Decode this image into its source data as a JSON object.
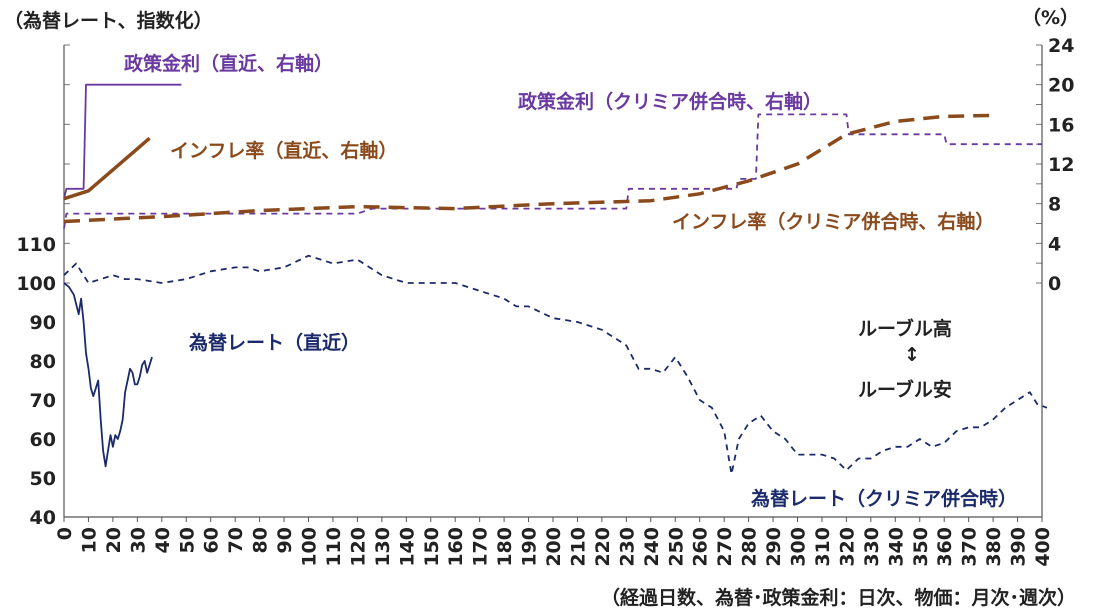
{
  "chart_data": {
    "type": "line",
    "title_left": "（為替レート、指数化）",
    "title_right": "（%）",
    "xlabel": "（経過日数、為替･政策金利：日次、物価：月次･週次）",
    "x_ticks": [
      "0",
      "10",
      "20",
      "30",
      "40",
      "50",
      "60",
      "70",
      "80",
      "90",
      "100",
      "110",
      "120",
      "130",
      "140",
      "150",
      "160",
      "170",
      "180",
      "190",
      "200",
      "210",
      "220",
      "230",
      "240",
      "250",
      "260",
      "270",
      "280",
      "290",
      "300",
      "310",
      "320",
      "330",
      "340",
      "350",
      "360",
      "370",
      "380",
      "390",
      "400"
    ],
    "left_axis": {
      "ticks": [
        "40",
        "50",
        "60",
        "70",
        "80",
        "90",
        "100",
        "110"
      ],
      "ylim": [
        40,
        110
      ]
    },
    "right_axis": {
      "ticks": [
        "0",
        "4",
        "8",
        "12",
        "16",
        "20",
        "24"
      ],
      "ylim": [
        0,
        24
      ]
    },
    "colors": {
      "fx": "#1b2a6b",
      "rate": "#6a3aa0",
      "inflation": "#8a4a1c",
      "text": "#222222"
    },
    "annotations": {
      "rate_recent": "政策金利（直近、右軸）",
      "rate_crimea": "政策金利（クリミア併合時、右軸）",
      "inflation_recent": "インフレ率（直近、右軸）",
      "inflation_crimea": "インフレ率（クリミア併合時、右軸）",
      "fx_recent": "為替レート（直近）",
      "fx_crimea": "為替レート（クリミア併合時）",
      "ruble_high": "ルーブル高",
      "ruble_arrow": "↕",
      "ruble_low": "ルーブル安"
    },
    "series": [
      {
        "name": "為替レート（直近）",
        "axis": "left",
        "style": "solid",
        "color_key": "fx",
        "points": [
          [
            0,
            100
          ],
          [
            2,
            99
          ],
          [
            4,
            97
          ],
          [
            6,
            92
          ],
          [
            7,
            96
          ],
          [
            8,
            90
          ],
          [
            9,
            82
          ],
          [
            10,
            78
          ],
          [
            11,
            73
          ],
          [
            12,
            71
          ],
          [
            13,
            73
          ],
          [
            14,
            75
          ],
          [
            15,
            65
          ],
          [
            16,
            57
          ],
          [
            17,
            53
          ],
          [
            18,
            57
          ],
          [
            19,
            61
          ],
          [
            20,
            58
          ],
          [
            21,
            61
          ],
          [
            22,
            60
          ],
          [
            23,
            62
          ],
          [
            24,
            65
          ],
          [
            25,
            72
          ],
          [
            26,
            75
          ],
          [
            27,
            78
          ],
          [
            28,
            77
          ],
          [
            29,
            74
          ],
          [
            30,
            74
          ],
          [
            31,
            76
          ],
          [
            32,
            79
          ],
          [
            33,
            80
          ],
          [
            34,
            77
          ],
          [
            35,
            79
          ],
          [
            36,
            81
          ]
        ]
      },
      {
        "name": "為替レート（クリミア併合時）",
        "axis": "left",
        "style": "dashed",
        "color_key": "fx",
        "points": [
          [
            0,
            102
          ],
          [
            5,
            105
          ],
          [
            10,
            100
          ],
          [
            15,
            101
          ],
          [
            20,
            102
          ],
          [
            25,
            101
          ],
          [
            30,
            101
          ],
          [
            40,
            100
          ],
          [
            50,
            101
          ],
          [
            60,
            103
          ],
          [
            70,
            104
          ],
          [
            75,
            104
          ],
          [
            80,
            103
          ],
          [
            90,
            104
          ],
          [
            100,
            107
          ],
          [
            110,
            105
          ],
          [
            120,
            106
          ],
          [
            125,
            104
          ],
          [
            130,
            102
          ],
          [
            140,
            100
          ],
          [
            150,
            100
          ],
          [
            160,
            100
          ],
          [
            170,
            98
          ],
          [
            180,
            96
          ],
          [
            185,
            94
          ],
          [
            190,
            94
          ],
          [
            200,
            91
          ],
          [
            210,
            90
          ],
          [
            220,
            88
          ],
          [
            230,
            84
          ],
          [
            235,
            78
          ],
          [
            240,
            78
          ],
          [
            245,
            77
          ],
          [
            250,
            81
          ],
          [
            255,
            76
          ],
          [
            260,
            70
          ],
          [
            265,
            68
          ],
          [
            270,
            62
          ],
          [
            273,
            51
          ],
          [
            276,
            60
          ],
          [
            280,
            64
          ],
          [
            285,
            66
          ],
          [
            290,
            62
          ],
          [
            295,
            60
          ],
          [
            300,
            56
          ],
          [
            310,
            56
          ],
          [
            315,
            55
          ],
          [
            320,
            52
          ],
          [
            325,
            55
          ],
          [
            330,
            55
          ],
          [
            335,
            57
          ],
          [
            340,
            58
          ],
          [
            345,
            58
          ],
          [
            350,
            60
          ],
          [
            355,
            58
          ],
          [
            360,
            59
          ],
          [
            365,
            62
          ],
          [
            370,
            63
          ],
          [
            375,
            63
          ],
          [
            380,
            65
          ],
          [
            385,
            68
          ],
          [
            390,
            70
          ],
          [
            395,
            72
          ],
          [
            398,
            69
          ],
          [
            402,
            68
          ]
        ]
      },
      {
        "name": "政策金利（直近、右軸）",
        "axis": "right",
        "style": "solid",
        "color_key": "rate",
        "points": [
          [
            0,
            8.5
          ],
          [
            1,
            9.5
          ],
          [
            8,
            9.5
          ],
          [
            9,
            20
          ],
          [
            48,
            20
          ]
        ]
      },
      {
        "name": "政策金利（クリミア併合時、右軸）",
        "axis": "right",
        "style": "dashed",
        "color_key": "rate",
        "points": [
          [
            0,
            5.5
          ],
          [
            1,
            7
          ],
          [
            120,
            7
          ],
          [
            126,
            7.5
          ],
          [
            230,
            7.5
          ],
          [
            231,
            9.5
          ],
          [
            275,
            9.5
          ],
          [
            276,
            10.5
          ],
          [
            283,
            10.5
          ],
          [
            284,
            17
          ],
          [
            320,
            17
          ],
          [
            321,
            15
          ],
          [
            360,
            15
          ],
          [
            361,
            14
          ],
          [
            400,
            14
          ]
        ]
      },
      {
        "name": "インフレ率（直近、右軸）",
        "axis": "right",
        "style": "solid",
        "color_key": "inflation",
        "points": [
          [
            0,
            8.5
          ],
          [
            10,
            9.3
          ],
          [
            35,
            14.6
          ]
        ]
      },
      {
        "name": "インフレ率（クリミア併合時、右軸）",
        "axis": "right",
        "style": "dashed",
        "color_key": "inflation",
        "points": [
          [
            0,
            6.2
          ],
          [
            40,
            6.7
          ],
          [
            80,
            7.3
          ],
          [
            120,
            7.7
          ],
          [
            160,
            7.5
          ],
          [
            200,
            8.0
          ],
          [
            240,
            8.3
          ],
          [
            260,
            9.0
          ],
          [
            280,
            10.3
          ],
          [
            300,
            12.0
          ],
          [
            320,
            15.0
          ],
          [
            340,
            16.3
          ],
          [
            360,
            16.8
          ],
          [
            380,
            16.9
          ]
        ]
      }
    ]
  }
}
